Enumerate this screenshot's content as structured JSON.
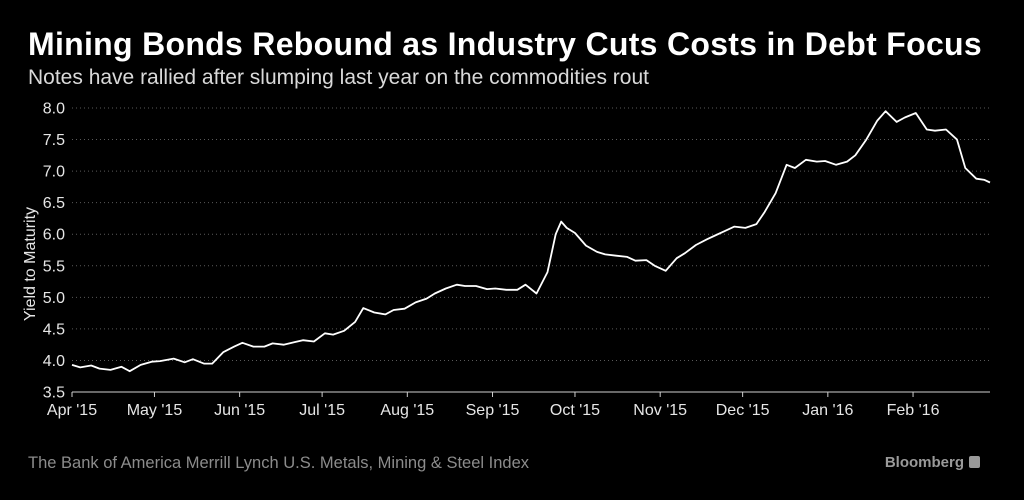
{
  "header": {
    "title": "Mining Bonds Rebound as Industry Cuts Costs in Debt Focus",
    "subtitle": "Notes have rallied after slumping last year on the commodities rout"
  },
  "footer": {
    "source": "The Bank of America Merrill Lynch U.S. Metals, Mining & Steel Index",
    "brand": "Bloomberg"
  },
  "colors": {
    "background": "#000000",
    "line": "#ffffff",
    "grid": "#5a5a5a"
  },
  "chart_data": {
    "type": "line",
    "title": "Mining Bonds Rebound as Industry Cuts Costs in Debt Focus",
    "subtitle": "Notes have rallied after slumping last year on the commodities rout",
    "ylabel": "Yield to Maturity",
    "xlabel": "",
    "ylim": [
      3.5,
      8.0
    ],
    "yticks": [
      3.5,
      4.0,
      4.5,
      5.0,
      5.5,
      6.0,
      6.5,
      7.0,
      7.5,
      8.0
    ],
    "ytick_labels": [
      "3.5",
      "4.0",
      "4.5",
      "5.0",
      "5.5",
      "6.0",
      "6.5",
      "7.0",
      "7.5",
      "8.0"
    ],
    "xlim": [
      "2015-04-01",
      "2016-02-29"
    ],
    "xticks": [
      "2015-04-01",
      "2015-05-01",
      "2015-06-01",
      "2015-07-01",
      "2015-08-01",
      "2015-09-01",
      "2015-10-01",
      "2015-11-01",
      "2015-12-01",
      "2016-01-01",
      "2016-02-01"
    ],
    "xtick_labels": [
      "Apr '15",
      "May '15",
      "Jun '15",
      "Jul '15",
      "Aug '15",
      "Sep '15",
      "Oct '15",
      "Nov '15",
      "Dec '15",
      "Jan '16",
      "Feb '16"
    ],
    "grid": "horizontal dotted",
    "legend": "none",
    "series": [
      {
        "x": [
          "2015-04-01",
          "2015-04-04",
          "2015-04-08",
          "2015-04-11",
          "2015-04-15",
          "2015-04-19",
          "2015-04-22",
          "2015-04-26",
          "2015-04-30",
          "2015-05-03",
          "2015-05-08",
          "2015-05-12",
          "2015-05-15",
          "2015-05-19",
          "2015-05-22",
          "2015-05-26",
          "2015-05-30",
          "2015-06-02",
          "2015-06-06",
          "2015-06-10",
          "2015-06-13",
          "2015-06-17",
          "2015-06-21",
          "2015-06-24",
          "2015-06-28",
          "2015-07-02",
          "2015-07-05",
          "2015-07-09",
          "2015-07-13",
          "2015-07-16",
          "2015-07-20",
          "2015-07-24",
          "2015-07-27",
          "2015-07-31",
          "2015-08-04",
          "2015-08-08",
          "2015-08-11",
          "2015-08-15",
          "2015-08-19",
          "2015-08-22",
          "2015-08-26",
          "2015-08-30",
          "2015-09-02",
          "2015-09-06",
          "2015-09-10",
          "2015-09-13",
          "2015-09-17",
          "2015-09-21",
          "2015-09-24",
          "2015-09-26",
          "2015-09-28",
          "2015-10-01",
          "2015-10-05",
          "2015-10-09",
          "2015-10-12",
          "2015-10-16",
          "2015-10-20",
          "2015-10-23",
          "2015-10-27",
          "2015-10-30",
          "2015-11-03",
          "2015-11-07",
          "2015-11-10",
          "2015-11-14",
          "2015-11-18",
          "2015-11-21",
          "2015-11-25",
          "2015-11-28",
          "2015-12-02",
          "2015-12-06",
          "2015-12-09",
          "2015-12-13",
          "2015-12-17",
          "2015-12-20",
          "2015-12-24",
          "2015-12-28",
          "2015-12-31",
          "2016-01-04",
          "2016-01-08",
          "2016-01-11",
          "2016-01-15",
          "2016-01-19",
          "2016-01-22",
          "2016-01-26",
          "2016-01-29",
          "2016-02-02",
          "2016-02-06",
          "2016-02-09",
          "2016-02-13",
          "2016-02-17",
          "2016-02-20",
          "2016-02-24",
          "2016-02-27",
          "2016-02-29"
        ],
        "values": [
          3.93,
          3.89,
          3.92,
          3.87,
          3.85,
          3.9,
          3.83,
          3.93,
          3.98,
          3.99,
          4.03,
          3.97,
          4.02,
          3.95,
          3.95,
          4.13,
          4.22,
          4.28,
          4.22,
          4.22,
          4.27,
          4.25,
          4.29,
          4.32,
          4.3,
          4.43,
          4.41,
          4.47,
          4.61,
          4.83,
          4.76,
          4.73,
          4.8,
          4.82,
          4.92,
          4.98,
          5.06,
          5.14,
          5.2,
          5.18,
          5.18,
          5.13,
          5.14,
          5.12,
          5.12,
          5.2,
          5.06,
          5.4,
          6.0,
          6.2,
          6.1,
          6.02,
          5.82,
          5.72,
          5.68,
          5.66,
          5.64,
          5.58,
          5.59,
          5.5,
          5.42,
          5.62,
          5.7,
          5.83,
          5.92,
          5.98,
          6.06,
          6.12,
          6.1,
          6.16,
          6.35,
          6.65,
          7.1,
          7.05,
          7.18,
          7.15,
          7.16,
          7.1,
          7.15,
          7.25,
          7.5,
          7.8,
          7.95,
          7.78,
          7.85,
          7.92,
          7.66,
          7.64,
          7.66,
          7.5,
          7.05,
          6.88,
          6.86,
          6.82
        ]
      }
    ]
  }
}
